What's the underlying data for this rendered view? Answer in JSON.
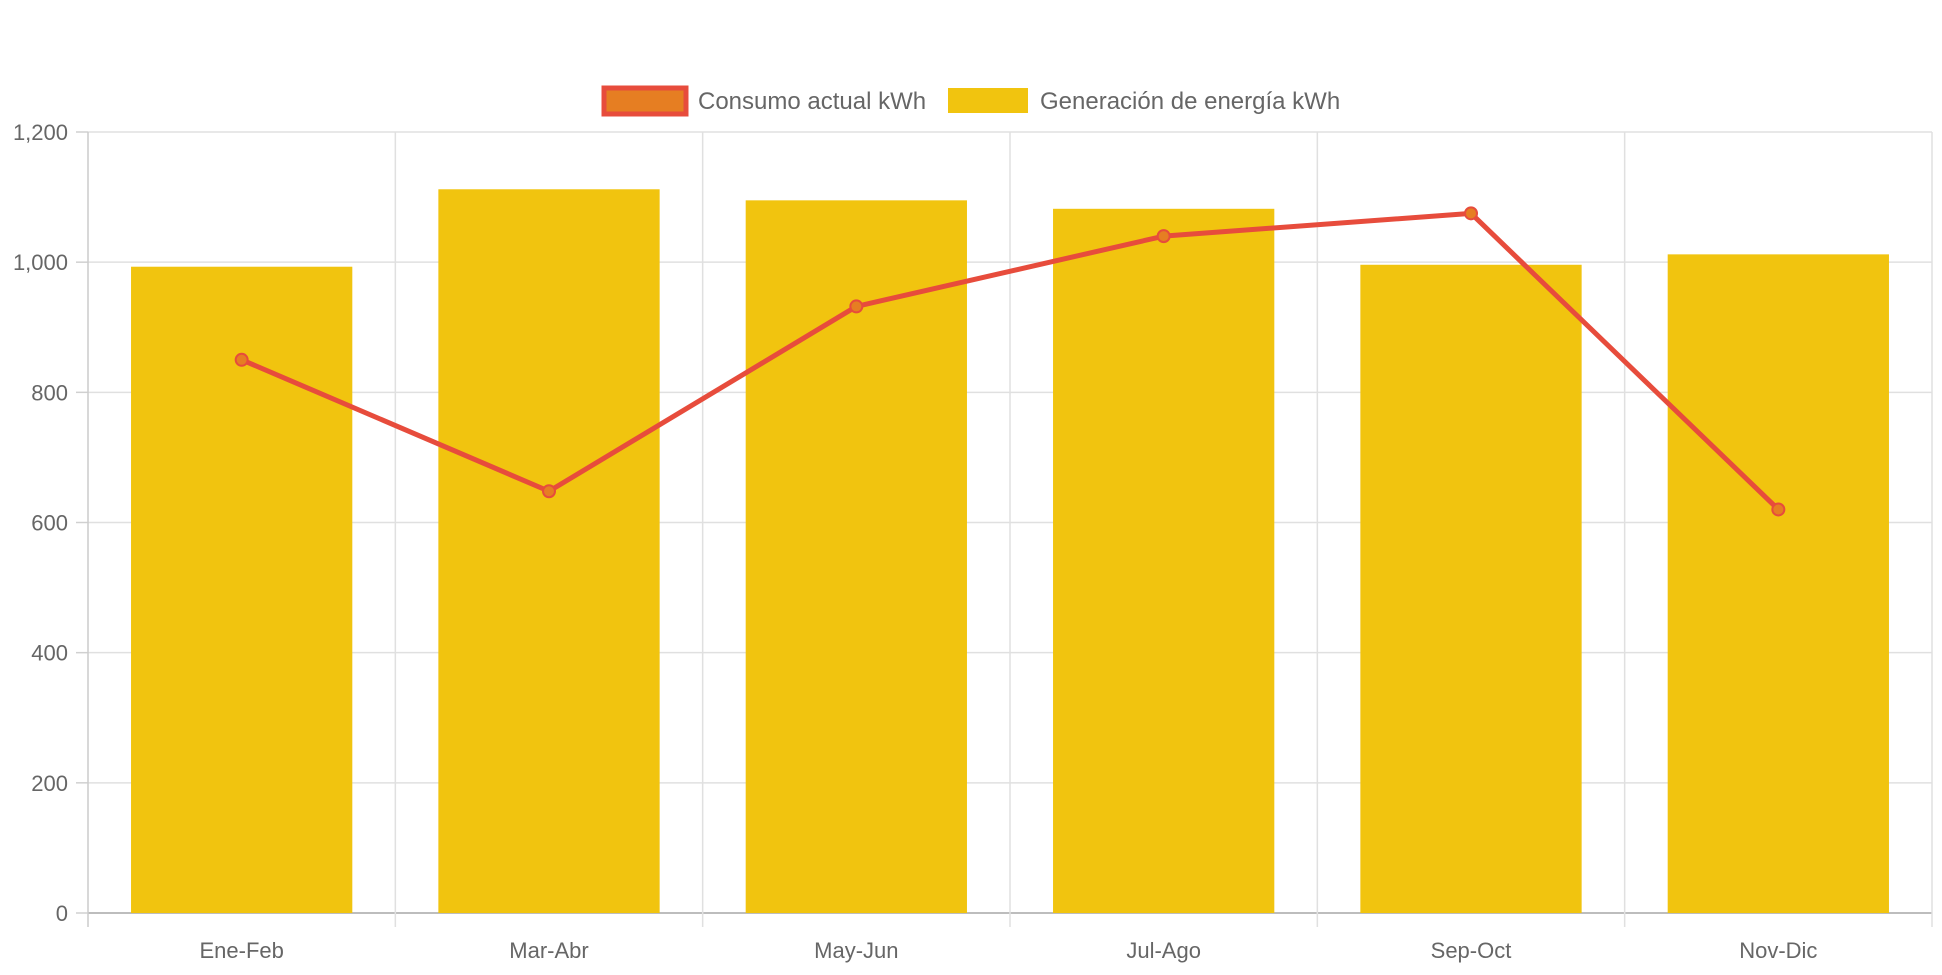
{
  "chart_data": {
    "type": "bar",
    "categories": [
      "Ene-Feb",
      "Mar-Abr",
      "May-Jun",
      "Jul-Ago",
      "Sep-Oct",
      "Nov-Dic"
    ],
    "series": [
      {
        "name": "Consumo actual kWh",
        "type": "line",
        "values": [
          850,
          648,
          932,
          1040,
          1075,
          620
        ],
        "color": "#e74c3c",
        "point_color": "#e67e22"
      },
      {
        "name": "Generación de energía kWh",
        "type": "bar",
        "values": [
          993,
          1112,
          1095,
          1082,
          996,
          1012
        ],
        "color": "#f1c40f"
      }
    ],
    "y_ticks": [
      "0",
      "200",
      "400",
      "600",
      "800",
      "1,000",
      "1,200"
    ],
    "ylim": [
      0,
      1200
    ],
    "grid": true,
    "legend_position": "top-center"
  }
}
